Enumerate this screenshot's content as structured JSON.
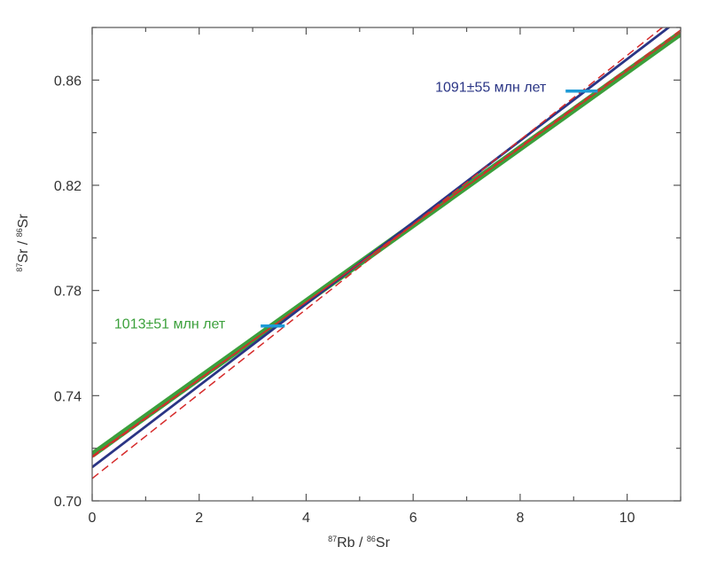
{
  "chart_data": {
    "type": "line",
    "xlabel": {
      "pre": "87",
      "main": "Rb / ",
      "sup2": "86",
      "tail": "Sr"
    },
    "ylabel": {
      "pre": "87",
      "main": "Sr / ",
      "sup2": "86",
      "tail": "Sr"
    },
    "xlim": [
      0,
      11
    ],
    "ylim": [
      0.7,
      0.88
    ],
    "x_ticks": [
      0,
      2,
      4,
      6,
      8,
      10
    ],
    "x_tick_labels": [
      "0",
      "2",
      "4",
      "6",
      "8",
      "10"
    ],
    "y_ticks": [
      0.7,
      0.74,
      0.78,
      0.82,
      0.86
    ],
    "y_tick_labels": [
      "0.70",
      "0.74",
      "0.78",
      "0.82",
      "0.86"
    ],
    "grid": false,
    "series": [
      {
        "color": "#3ba03b",
        "style": "solid-thick",
        "points": [
          [
            0,
            0.7175
          ],
          [
            11,
            0.8778
          ]
        ]
      },
      {
        "color": "#2a3585",
        "style": "solid",
        "points": [
          [
            0,
            0.7128
          ],
          [
            11,
            0.8835
          ]
        ]
      },
      {
        "color": "#d62b2b",
        "style": "dashed",
        "points": [
          [
            0,
            0.7085
          ],
          [
            11,
            0.8855
          ]
        ]
      },
      {
        "color": "#d62b2b",
        "style": "dashed",
        "points": [
          [
            0,
            0.7165
          ],
          [
            11,
            0.879
          ]
        ]
      },
      {
        "color": "#d62b2b",
        "style": "solid-thin",
        "points": [
          [
            0,
            0.717
          ],
          [
            11,
            0.8782
          ]
        ]
      }
    ],
    "annotations": [
      {
        "text": "1091±55 млн лет",
        "color": "#2a3585",
        "x": 7.45,
        "y": 0.8555,
        "anchor": "middle"
      },
      {
        "text": "1013±51 млн лет",
        "color": "#3ba03b",
        "x": 1.45,
        "y": 0.7655,
        "anchor": "middle"
      }
    ],
    "markers": [
      {
        "color": "#1e9ad6",
        "x1": 8.85,
        "x2": 9.45,
        "y": 0.8558
      },
      {
        "color": "#1e9ad6",
        "x1": 3.15,
        "x2": 3.6,
        "y": 0.7665
      }
    ]
  }
}
